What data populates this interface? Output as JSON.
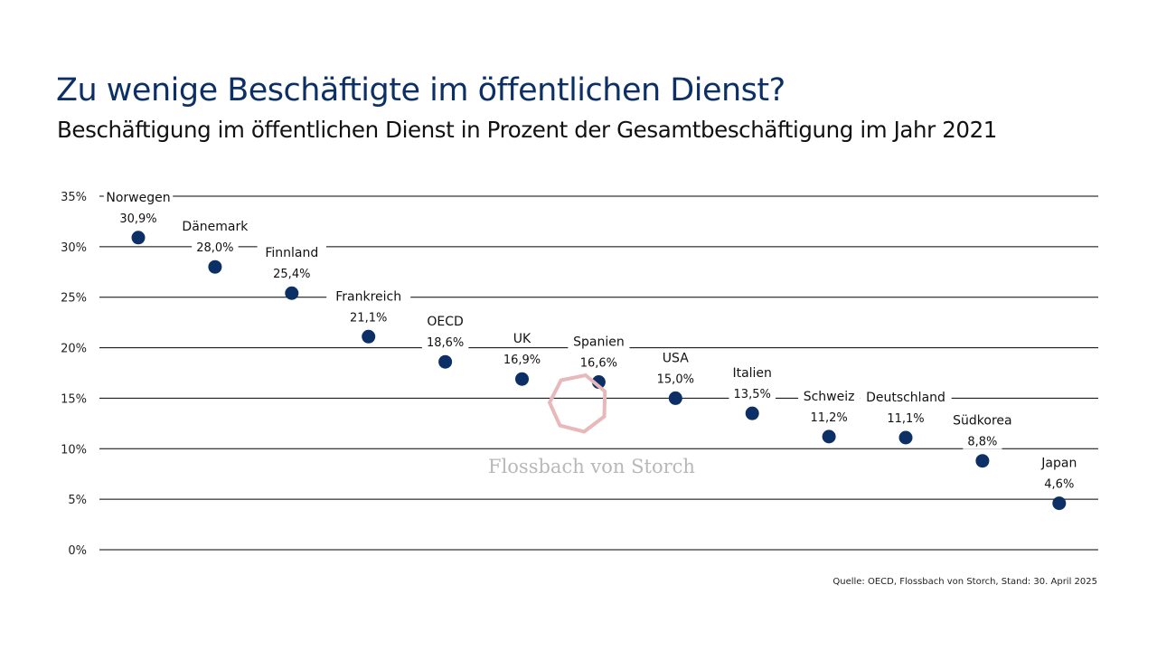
{
  "title": "Zu wenige Beschäftigte im öffentlichen Dienst?",
  "subtitle": "Beschäftigung im öffentlichen Dienst in Prozent der Gesamtbeschäftigung im Jahr 2021",
  "source": "Quelle: OECD, Flossbach von Storch, Stand: 30. April 2025",
  "watermark": {
    "text": "Flossbach von Storch",
    "color": "#e8b8ba"
  },
  "colors": {
    "marker": "#0c3066",
    "title": "#0c3066",
    "grid": "#000000"
  },
  "chart_data": {
    "type": "scatter",
    "categories": [
      "Norwegen",
      "Dänemark",
      "Finnland",
      "Frankreich",
      "OECD",
      "UK",
      "Spanien",
      "USA",
      "Italien",
      "Schweiz",
      "Deutschland",
      "Südkorea",
      "Japan"
    ],
    "values": [
      30.9,
      28.0,
      25.4,
      21.1,
      18.6,
      16.9,
      16.6,
      15.0,
      13.5,
      11.2,
      11.1,
      8.8,
      4.6
    ],
    "value_labels": [
      "30,9%",
      "28,0%",
      "25,4%",
      "21,1%",
      "18,6%",
      "16,9%",
      "16,6%",
      "15,0%",
      "13,5%",
      "11,2%",
      "11,1%",
      "8,8%",
      "4,6%"
    ],
    "ylim": [
      0,
      35
    ],
    "yticks": [
      0,
      5,
      10,
      15,
      20,
      25,
      30,
      35
    ],
    "ytick_labels": [
      "0%",
      "5%",
      "10%",
      "15%",
      "20%",
      "25%",
      "30%",
      "35%"
    ],
    "grid": true
  }
}
